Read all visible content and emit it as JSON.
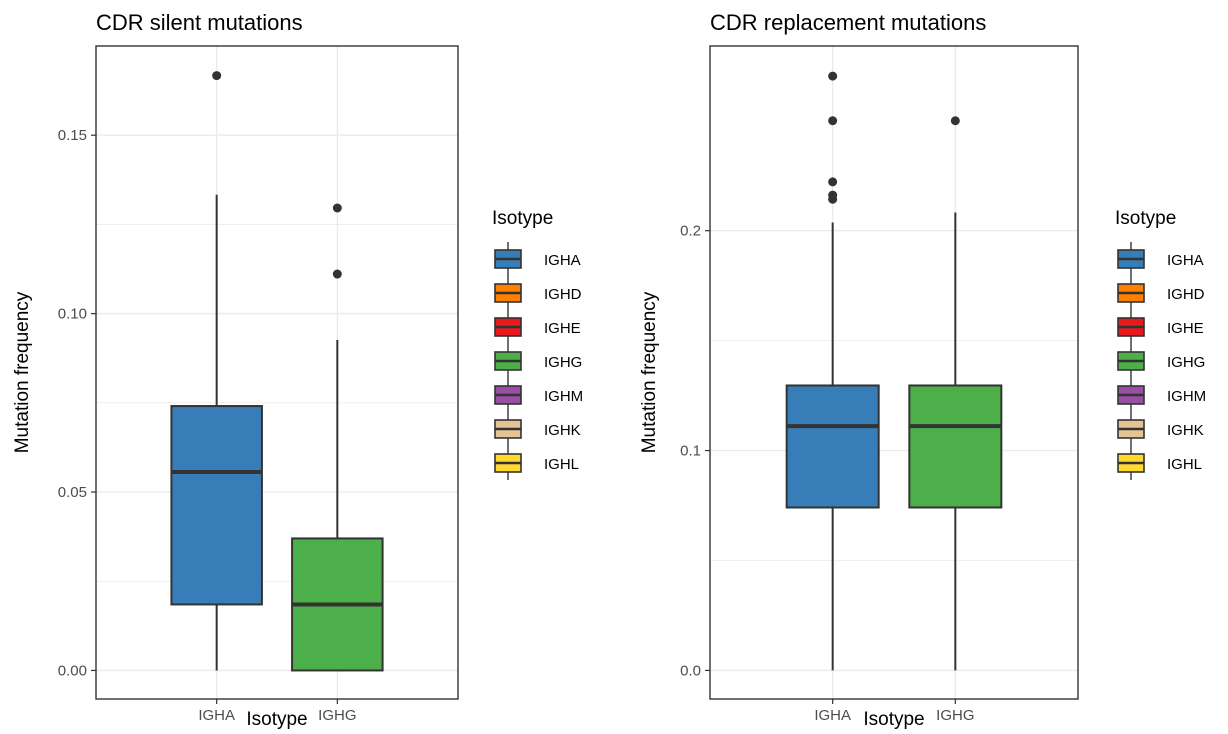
{
  "chart_data": [
    {
      "type": "boxplot",
      "title": "CDR silent mutations",
      "xlabel": "Isotype",
      "ylabel": "Mutation frequency",
      "categories": [
        "IGHA",
        "IGHG"
      ],
      "ylim": [
        -0.008,
        0.175
      ],
      "yticks": [
        0.0,
        0.05,
        0.1,
        0.15
      ],
      "ytick_labels": [
        "0.00",
        "0.05",
        "0.10",
        "0.15"
      ],
      "grid": true,
      "boxes": [
        {
          "category": "IGHA",
          "color": "#377EB8",
          "whisker_low": 0.0,
          "q1": 0.0185,
          "median": 0.0556,
          "q3": 0.0741,
          "whisker_high": 0.1333,
          "outliers": [
            0.1667
          ]
        },
        {
          "category": "IGHG",
          "color": "#4DAF4A",
          "whisker_low": 0.0,
          "q1": 0.0,
          "median": 0.0185,
          "q3": 0.037,
          "whisker_high": 0.0926,
          "outliers": [
            0.1111,
            0.1296
          ]
        }
      ]
    },
    {
      "type": "boxplot",
      "title": "CDR replacement mutations",
      "xlabel": "Isotype",
      "ylabel": "Mutation frequency",
      "categories": [
        "IGHA",
        "IGHG"
      ],
      "ylim": [
        -0.013,
        0.284
      ],
      "yticks": [
        0.0,
        0.1,
        0.2
      ],
      "ytick_labels": [
        "0.0",
        "0.1",
        "0.2"
      ],
      "grid": true,
      "boxes": [
        {
          "category": "IGHA",
          "color": "#377EB8",
          "whisker_low": 0.0,
          "q1": 0.0741,
          "median": 0.1111,
          "q3": 0.1296,
          "whisker_high": 0.2037,
          "outliers": [
            0.2143,
            0.2162,
            0.2222,
            0.25,
            0.2703
          ]
        },
        {
          "category": "IGHG",
          "color": "#4DAF4A",
          "whisker_low": 0.0,
          "q1": 0.0741,
          "median": 0.1111,
          "q3": 0.1296,
          "whisker_high": 0.2083,
          "outliers": [
            0.25
          ]
        }
      ]
    }
  ],
  "legend": {
    "title": "Isotype",
    "placement": "right",
    "items": [
      {
        "label": "IGHA",
        "color": "#377EB8"
      },
      {
        "label": "IGHD",
        "color": "#FF7F00"
      },
      {
        "label": "IGHE",
        "color": "#E41A1C"
      },
      {
        "label": "IGHG",
        "color": "#4DAF4A"
      },
      {
        "label": "IGHM",
        "color": "#984EA3"
      },
      {
        "label": "IGHK",
        "color": "#E5C494"
      },
      {
        "label": "IGHL",
        "color": "#FFD92F"
      }
    ]
  }
}
